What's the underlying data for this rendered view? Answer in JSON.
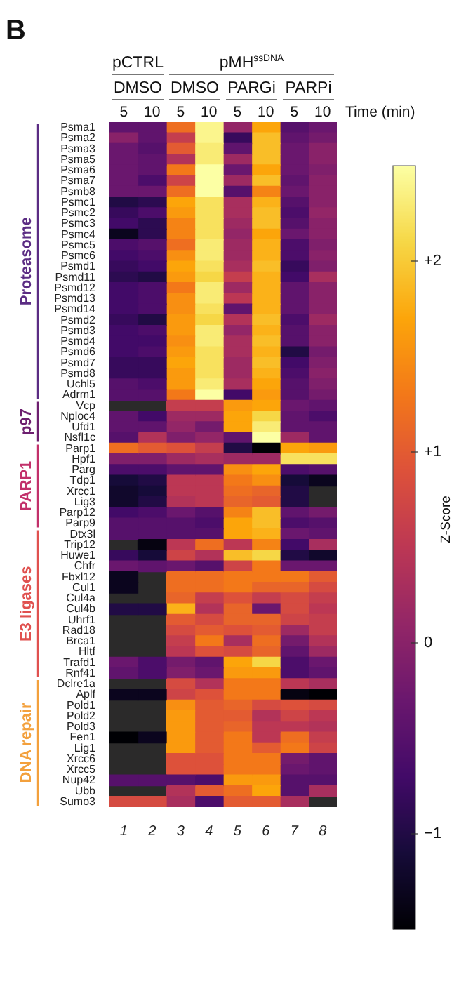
{
  "chart_data": {
    "type": "heatmap",
    "title": "B",
    "categories": [
      "1",
      "2",
      "3",
      "4",
      "5",
      "6",
      "7",
      "8"
    ],
    "y_categories": [
      "Psma1",
      "Psma2",
      "Psma3",
      "Psma5",
      "Psma6",
      "Psma7",
      "Psmb8",
      "Psmc1",
      "Psmc2",
      "Psmc3",
      "Psmc4",
      "Psmc5",
      "Psmc6",
      "Psmd1",
      "Psmd11",
      "Psmd12",
      "Psmd13",
      "Psmd14",
      "Psmd2",
      "Psmd3",
      "Psmd4",
      "Psmd6",
      "Psmd7",
      "Psmd8",
      "Uchl5",
      "Adrm1",
      "Vcp",
      "Nploc4",
      "Ufd1",
      "Nsfl1c",
      "Parp1",
      "Hpf1",
      "Parg",
      "Tdp1",
      "Xrcc1",
      "Lig3",
      "Parp12",
      "Parp9",
      "Dtx3l",
      "Trip12",
      "Huwe1",
      "Chfr",
      "Fbxl12",
      "Cul1",
      "Cul4a",
      "Cul4b",
      "Uhrf1",
      "Rad18",
      "Brca1",
      "Hltf",
      "Trafd1",
      "Rnf41",
      "Dclre1a",
      "Aplf",
      "Pold1",
      "Pold2",
      "Pold3",
      "Fen1",
      "Lig1",
      "Xrcc6",
      "Xrcc5",
      "Nup42",
      "Ubb",
      "Sumo3"
    ],
    "cells": [
      [
        -0.4,
        -0.4,
        1.2,
        2.4,
        0.1,
        1.7,
        -0.5,
        -0.3
      ],
      [
        0.0,
        -0.4,
        0.6,
        2.4,
        -0.8,
        1.9,
        -0.4,
        -0.2
      ],
      [
        -0.3,
        -0.5,
        1.0,
        2.3,
        -0.4,
        1.9,
        -0.3,
        0.0
      ],
      [
        -0.3,
        -0.4,
        0.4,
        2.3,
        0.2,
        1.9,
        -0.3,
        0.0
      ],
      [
        -0.3,
        -0.4,
        1.3,
        2.5,
        -0.3,
        1.7,
        -0.3,
        -0.1
      ],
      [
        -0.3,
        -0.6,
        0.7,
        2.5,
        0.2,
        1.9,
        -0.4,
        0.0
      ],
      [
        -0.3,
        -0.3,
        1.2,
        2.5,
        -0.5,
        1.4,
        -0.3,
        0.0
      ],
      [
        -1.0,
        -0.9,
        1.7,
        2.2,
        0.3,
        1.8,
        -0.5,
        0.0
      ],
      [
        -0.8,
        -0.6,
        1.6,
        2.2,
        0.3,
        1.9,
        -0.6,
        0.1
      ],
      [
        -0.7,
        -0.9,
        1.4,
        2.2,
        0.2,
        1.9,
        -0.5,
        0.0
      ],
      [
        -1.3,
        -0.9,
        1.4,
        2.2,
        0.1,
        1.7,
        -0.3,
        0.0
      ],
      [
        -0.6,
        -0.5,
        1.2,
        2.3,
        0.2,
        1.8,
        -0.6,
        -0.1
      ],
      [
        -0.7,
        -0.6,
        1.5,
        2.3,
        0.2,
        1.8,
        -0.6,
        0.0
      ],
      [
        -0.8,
        -0.7,
        1.7,
        2.2,
        0.3,
        1.9,
        -0.8,
        -0.1
      ],
      [
        -0.9,
        -1.0,
        1.6,
        2.1,
        0.6,
        1.8,
        -0.7,
        0.3
      ],
      [
        -0.7,
        -0.6,
        1.3,
        2.3,
        0.2,
        1.8,
        -0.4,
        0.0
      ],
      [
        -0.7,
        -0.6,
        1.5,
        2.3,
        0.5,
        1.8,
        -0.4,
        0.0
      ],
      [
        -0.7,
        -0.6,
        1.5,
        2.2,
        -0.4,
        1.8,
        -0.4,
        0.0
      ],
      [
        -0.8,
        -1.0,
        1.6,
        2.1,
        0.4,
        1.9,
        -0.6,
        0.2
      ],
      [
        -0.7,
        -0.6,
        1.6,
        2.3,
        0.1,
        1.8,
        -0.5,
        0.0
      ],
      [
        -0.7,
        -0.7,
        1.5,
        2.3,
        0.3,
        1.9,
        -0.5,
        0.0
      ],
      [
        -0.7,
        -0.6,
        1.6,
        2.2,
        0.3,
        1.8,
        -1.0,
        -0.2
      ],
      [
        -0.8,
        -0.8,
        1.7,
        2.2,
        0.2,
        1.9,
        -0.7,
        -0.1
      ],
      [
        -0.8,
        -0.8,
        1.6,
        2.2,
        0.2,
        1.8,
        -0.6,
        0.0
      ],
      [
        -0.5,
        -0.6,
        1.6,
        2.3,
        0.3,
        1.7,
        -0.5,
        -0.1
      ],
      [
        -0.5,
        -0.5,
        1.3,
        2.5,
        -0.7,
        1.6,
        -0.5,
        -0.2
      ],
      [
        null,
        null,
        0.6,
        0.6,
        1.6,
        1.7,
        -0.3,
        -0.4
      ],
      [
        -0.4,
        -0.7,
        0.2,
        0.2,
        1.7,
        2.1,
        -0.4,
        -0.6
      ],
      [
        -0.4,
        -0.4,
        0.1,
        -0.2,
        1.7,
        2.3,
        -0.4,
        -0.4
      ],
      [
        -0.5,
        0.4,
        -0.1,
        0.1,
        -0.4,
        2.5,
        0.2,
        -0.4
      ],
      [
        1.2,
        1.0,
        0.9,
        0.6,
        -1.0,
        -1.5,
        1.7,
        1.6
      ],
      [
        -0.1,
        -0.1,
        0.2,
        0.3,
        0.2,
        0.2,
        2.2,
        2.2
      ],
      [
        -0.6,
        -0.6,
        -0.4,
        -0.4,
        1.5,
        1.7,
        -0.6,
        -0.5
      ],
      [
        -1.1,
        -1.0,
        0.5,
        0.5,
        1.3,
        1.5,
        -1.1,
        -1.3
      ],
      [
        -1.2,
        -1.1,
        0.5,
        0.5,
        1.2,
        1.1,
        -1.0,
        null
      ],
      [
        -1.2,
        -1.0,
        0.4,
        0.5,
        1.1,
        1.0,
        -1.0,
        null
      ],
      [
        -0.7,
        -0.6,
        -0.3,
        -0.5,
        1.4,
        1.9,
        -0.4,
        -0.2
      ],
      [
        -0.5,
        -0.5,
        -0.5,
        -0.6,
        1.7,
        1.9,
        -0.6,
        -0.5
      ],
      [
        -0.5,
        -0.5,
        -0.5,
        -0.5,
        1.7,
        1.8,
        -0.3,
        -0.4
      ],
      [
        null,
        -1.4,
        0.5,
        1.2,
        0.5,
        1.4,
        -0.7,
        0.3
      ],
      [
        -0.8,
        -1.1,
        0.7,
        0.4,
        1.9,
        2.1,
        -1.0,
        -1.2
      ],
      [
        -0.3,
        -0.4,
        -0.3,
        -0.5,
        0.7,
        1.3,
        -0.3,
        -0.3
      ],
      [
        -1.3,
        null,
        1.2,
        1.2,
        1.3,
        1.3,
        1.3,
        1.0
      ],
      [
        -1.3,
        null,
        1.2,
        1.2,
        1.3,
        1.1,
        1.1,
        0.8
      ],
      [
        null,
        null,
        1.1,
        0.6,
        0.9,
        0.6,
        0.8,
        0.6
      ],
      [
        -1.0,
        -1.0,
        1.8,
        0.4,
        1.1,
        -0.3,
        0.8,
        0.5
      ],
      [
        null,
        null,
        1.0,
        0.8,
        1.1,
        1.1,
        0.7,
        0.6
      ],
      [
        null,
        null,
        0.8,
        1.0,
        0.9,
        1.0,
        0.2,
        0.6
      ],
      [
        null,
        null,
        0.6,
        1.3,
        0.3,
        1.2,
        -0.2,
        0.4
      ],
      [
        null,
        null,
        0.5,
        0.9,
        0.8,
        1.1,
        -0.4,
        0.2
      ],
      [
        -0.3,
        -0.6,
        -0.2,
        -0.4,
        1.7,
        2.1,
        -0.6,
        -0.3
      ],
      [
        -0.4,
        -0.6,
        -0.1,
        -0.3,
        1.6,
        1.6,
        -0.6,
        -0.4
      ],
      [
        null,
        null,
        0.8,
        0.4,
        1.3,
        1.3,
        0.5,
        0.3
      ],
      [
        -1.3,
        -1.3,
        0.7,
        0.9,
        1.3,
        1.3,
        -1.4,
        -1.5
      ],
      [
        null,
        null,
        1.5,
        1.0,
        1.1,
        0.8,
        0.9,
        0.8
      ],
      [
        null,
        null,
        1.6,
        1.0,
        1.0,
        0.4,
        0.7,
        0.5
      ],
      [
        null,
        null,
        1.6,
        1.0,
        1.1,
        0.5,
        0.5,
        0.4
      ],
      [
        -1.5,
        -1.3,
        1.6,
        1.0,
        1.3,
        0.5,
        1.2,
        0.6
      ],
      [
        null,
        null,
        1.6,
        1.0,
        1.3,
        1.0,
        1.3,
        0.7
      ],
      [
        null,
        null,
        0.9,
        0.9,
        1.3,
        1.3,
        -0.2,
        -0.4
      ],
      [
        null,
        null,
        0.9,
        0.9,
        1.3,
        1.3,
        -0.3,
        -0.4
      ],
      [
        -0.5,
        -0.5,
        -0.5,
        -0.6,
        1.6,
        1.6,
        -0.5,
        -0.5
      ],
      [
        null,
        null,
        0.4,
        1.0,
        1.2,
        1.7,
        -0.5,
        0.3
      ],
      [
        0.8,
        0.8,
        0.3,
        -0.6,
        1.0,
        1.0,
        0.3,
        null
      ]
    ],
    "clim": [
      -1.5,
      2.5
    ],
    "cticks": [
      {
        "value": 2,
        "label": "+2"
      },
      {
        "value": 1,
        "label": "+1"
      },
      0,
      {
        "value": -1,
        "label": "−1"
      }
    ],
    "clabel": "Z-Score",
    "annotations": [
      "pCTRL",
      "pMH$^{ssDNA}$",
      "DMSO",
      "DMSO",
      "PARGi",
      "PARPi",
      "5",
      "10",
      "5",
      "10",
      "5",
      "10",
      "5",
      "10",
      "Time (min)",
      "Proteasome",
      "p97",
      "PARP1",
      "E3 ligases",
      "DNA repair"
    ]
  }
}
